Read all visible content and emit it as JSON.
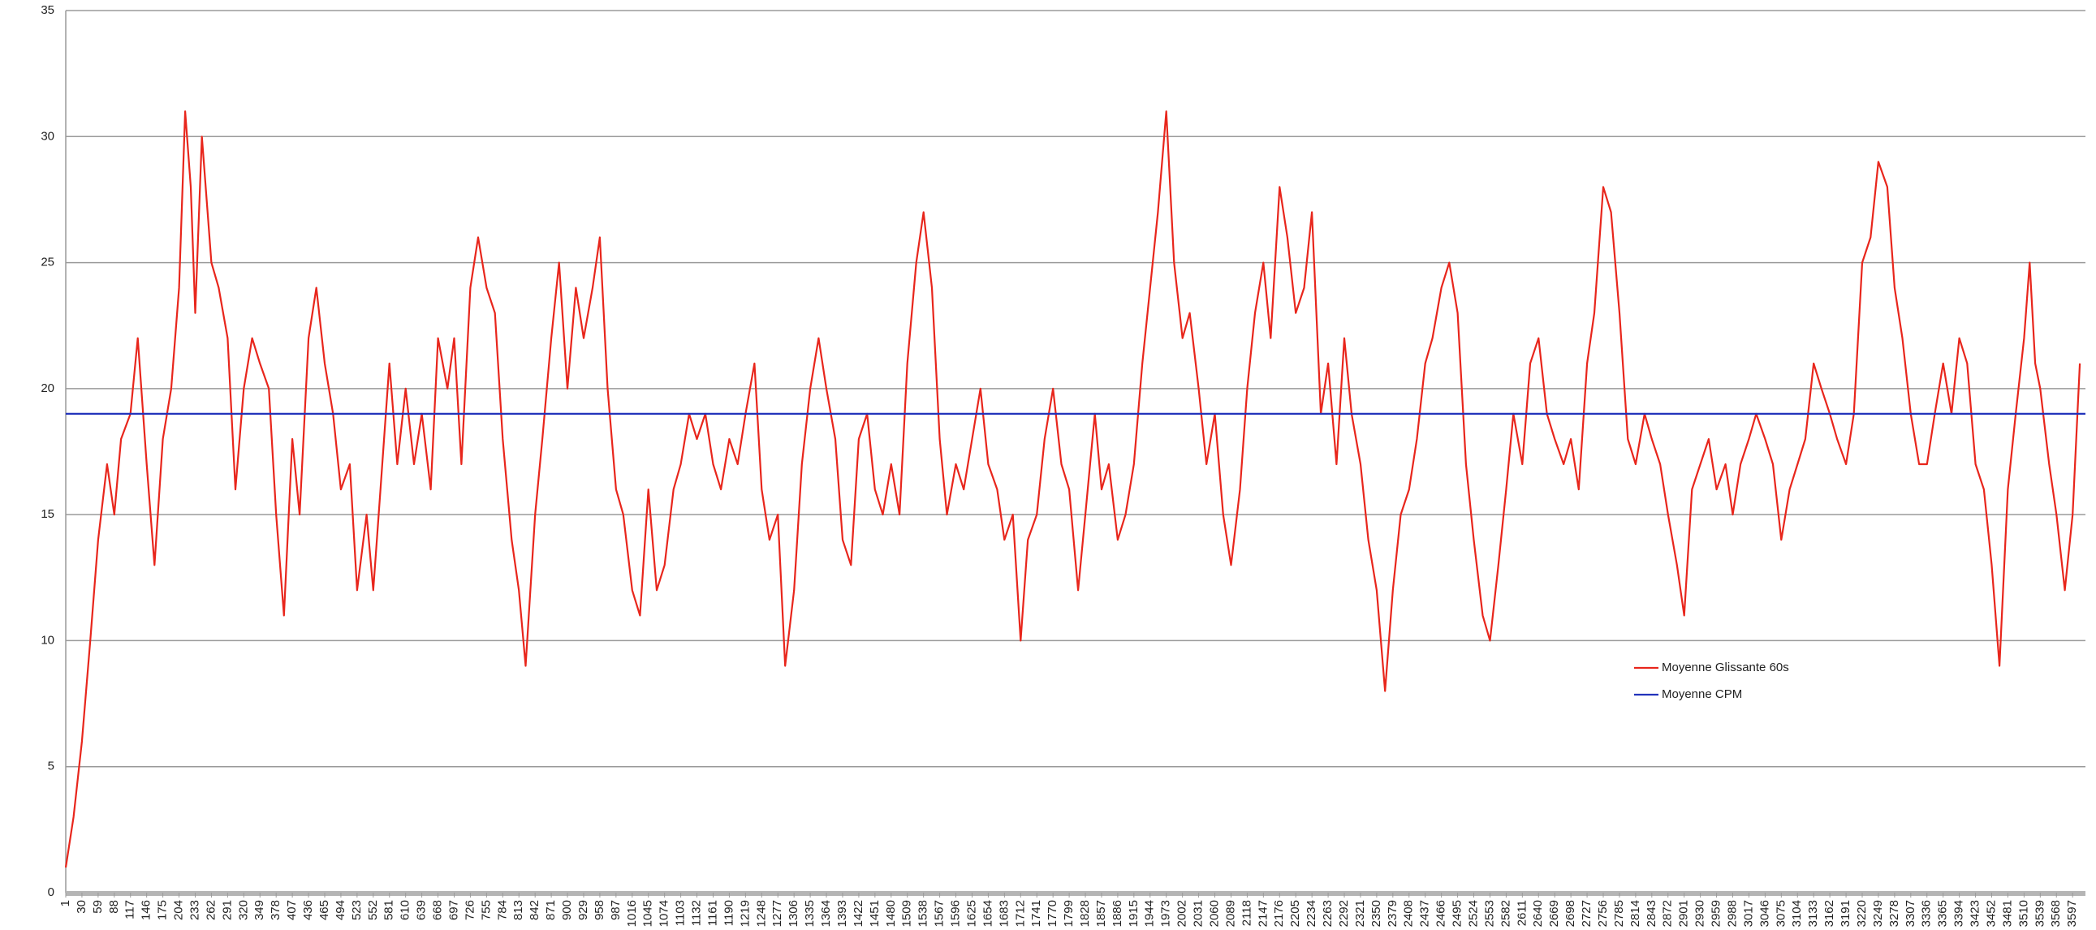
{
  "chart_data": {
    "type": "line",
    "xlim": [
      1,
      3620
    ],
    "ylim": [
      0,
      35
    ],
    "yticks": [
      0,
      5,
      10,
      15,
      20,
      25,
      30,
      35
    ],
    "xticks": [
      1,
      30,
      59,
      88,
      117,
      146,
      175,
      204,
      233,
      262,
      291,
      320,
      349,
      378,
      407,
      436,
      465,
      494,
      523,
      552,
      581,
      610,
      639,
      668,
      697,
      726,
      755,
      784,
      813,
      842,
      871,
      900,
      929,
      958,
      987,
      1016,
      1045,
      1074,
      1103,
      1132,
      1161,
      1190,
      1219,
      1248,
      1277,
      1306,
      1335,
      1364,
      1393,
      1422,
      1451,
      1480,
      1509,
      1538,
      1567,
      1596,
      1625,
      1654,
      1683,
      1712,
      1741,
      1770,
      1799,
      1828,
      1857,
      1886,
      1915,
      1944,
      1973,
      2002,
      2031,
      2060,
      2089,
      2118,
      2147,
      2176,
      2205,
      2234,
      2263,
      2292,
      2321,
      2350,
      2379,
      2408,
      2437,
      2466,
      2495,
      2524,
      2553,
      2582,
      2611,
      2640,
      2669,
      2698,
      2727,
      2756,
      2785,
      2814,
      2843,
      2872,
      2901,
      2930,
      2959,
      2988,
      3017,
      3046,
      3075,
      3104,
      3133,
      3162,
      3191,
      3220,
      3249,
      3278,
      3307,
      3336,
      3365,
      3394,
      3423,
      3452,
      3481,
      3510,
      3539,
      3568,
      3597
    ],
    "grid": true,
    "legend": "center-right",
    "series": [
      {
        "name": "Moyenne Glissante 60s",
        "color": "#e8261c",
        "x": [
          1,
          15,
          30,
          45,
          59,
          75,
          88,
          100,
          117,
          130,
          146,
          160,
          175,
          190,
          204,
          215,
          225,
          233,
          245,
          262,
          275,
          291,
          305,
          320,
          335,
          349,
          365,
          378,
          392,
          407,
          420,
          436,
          450,
          465,
          480,
          494,
          510,
          523,
          540,
          552,
          565,
          581,
          595,
          610,
          625,
          639,
          655,
          668,
          685,
          697,
          710,
          726,
          740,
          755,
          770,
          784,
          800,
          813,
          825,
          842,
          855,
          871,
          885,
          900,
          915,
          929,
          945,
          958,
          972,
          987,
          1000,
          1016,
          1030,
          1045,
          1060,
          1074,
          1090,
          1103,
          1118,
          1132,
          1147,
          1161,
          1175,
          1190,
          1205,
          1219,
          1235,
          1248,
          1262,
          1277,
          1290,
          1306,
          1320,
          1335,
          1350,
          1364,
          1380,
          1393,
          1408,
          1422,
          1437,
          1451,
          1465,
          1480,
          1495,
          1509,
          1525,
          1538,
          1553,
          1567,
          1580,
          1596,
          1610,
          1625,
          1640,
          1654,
          1670,
          1683,
          1698,
          1712,
          1725,
          1741,
          1755,
          1770,
          1785,
          1799,
          1815,
          1828,
          1845,
          1857,
          1870,
          1886,
          1900,
          1915,
          1930,
          1944,
          1958,
          1973,
          1987,
          2002,
          2015,
          2031,
          2045,
          2060,
          2075,
          2089,
          2105,
          2118,
          2132,
          2147,
          2160,
          2176,
          2190,
          2205,
          2220,
          2234,
          2250,
          2263,
          2278,
          2292,
          2305,
          2321,
          2335,
          2350,
          2365,
          2379,
          2393,
          2408,
          2422,
          2437,
          2450,
          2466,
          2480,
          2495,
          2510,
          2524,
          2540,
          2553,
          2568,
          2582,
          2595,
          2611,
          2625,
          2640,
          2655,
          2669,
          2685,
          2698,
          2712,
          2727,
          2740,
          2756,
          2770,
          2785,
          2800,
          2814,
          2830,
          2843,
          2858,
          2872,
          2888,
          2901,
          2915,
          2930,
          2945,
          2959,
          2975,
          2988,
          3002,
          3017,
          3030,
          3046,
          3060,
          3075,
          3090,
          3104,
          3118,
          3133,
          3147,
          3162,
          3175,
          3191,
          3205,
          3220,
          3235,
          3249,
          3265,
          3278,
          3292,
          3307,
          3322,
          3336,
          3350,
          3365,
          3380,
          3394,
          3408,
          3423,
          3438,
          3452,
          3466,
          3481,
          3495,
          3510,
          3520,
          3530,
          3539,
          3555,
          3568,
          3583,
          3597,
          3610
        ],
        "values": [
          1,
          3,
          6,
          10,
          14,
          17,
          15,
          18,
          19,
          22,
          17,
          13,
          18,
          20,
          24,
          31,
          28,
          23,
          30,
          25,
          24,
          22,
          16,
          20,
          22,
          21,
          20,
          15,
          11,
          18,
          15,
          22,
          24,
          21,
          19,
          16,
          17,
          12,
          15,
          12,
          16,
          21,
          17,
          20,
          17,
          19,
          16,
          22,
          20,
          22,
          17,
          24,
          26,
          24,
          23,
          18,
          14,
          12,
          9,
          15,
          18,
          22,
          25,
          20,
          24,
          22,
          24,
          26,
          20,
          16,
          15,
          12,
          11,
          16,
          12,
          13,
          16,
          17,
          19,
          18,
          19,
          17,
          16,
          18,
          17,
          19,
          21,
          16,
          14,
          15,
          9,
          12,
          17,
          20,
          22,
          20,
          18,
          14,
          13,
          18,
          19,
          16,
          15,
          17,
          15,
          21,
          25,
          27,
          24,
          18,
          15,
          17,
          16,
          18,
          20,
          17,
          16,
          14,
          15,
          10,
          14,
          15,
          18,
          20,
          17,
          16,
          12,
          15,
          19,
          16,
          17,
          14,
          15,
          17,
          21,
          24,
          27,
          31,
          25,
          22,
          23,
          20,
          17,
          19,
          15,
          13,
          16,
          20,
          23,
          25,
          22,
          28,
          26,
          23,
          24,
          27,
          19,
          21,
          17,
          22,
          19,
          17,
          14,
          12,
          8,
          12,
          15,
          16,
          18,
          21,
          22,
          24,
          25,
          23,
          17,
          14,
          11,
          10,
          13,
          16,
          19,
          17,
          21,
          22,
          19,
          18,
          17,
          18,
          16,
          21,
          23,
          28,
          27,
          23,
          18,
          17,
          19,
          18,
          17,
          15,
          13,
          11,
          16,
          17,
          18,
          16,
          17,
          15,
          17,
          18,
          19,
          18,
          17,
          14,
          16,
          17,
          18,
          21,
          20,
          19,
          18,
          17,
          19,
          25,
          26,
          29,
          28,
          24,
          22,
          19,
          17,
          17,
          19,
          21,
          19,
          22,
          21,
          17,
          16,
          13,
          9,
          16,
          19,
          22,
          25,
          21,
          20,
          17,
          15,
          12,
          15,
          21
        ]
      },
      {
        "name": "Moyenne CPM",
        "color": "#2233bb",
        "x": [
          1,
          3620
        ],
        "values": [
          19,
          19
        ]
      }
    ]
  }
}
